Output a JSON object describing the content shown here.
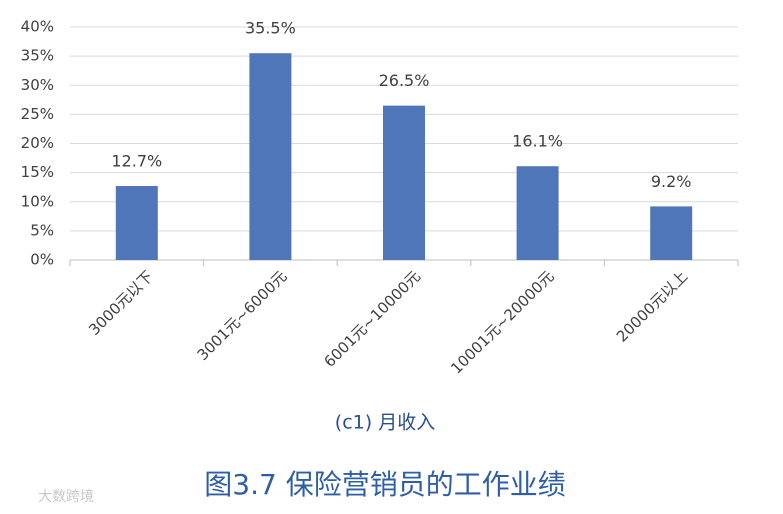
{
  "chart_data": {
    "type": "bar",
    "categories": [
      "3000元以下",
      "3001元~6000元",
      "6001元~10000元",
      "10001元~20000元",
      "20000元以上"
    ],
    "values": [
      12.7,
      35.5,
      26.5,
      16.1,
      9.2
    ],
    "value_labels": [
      "12.7%",
      "35.5%",
      "26.5%",
      "16.1%",
      "9.2%"
    ],
    "color": "#4f76b8",
    "ylim": [
      0,
      40
    ],
    "yticks": [
      {
        "value": 0,
        "label": "0%"
      },
      {
        "value": 5,
        "label": "5%"
      },
      {
        "value": 10,
        "label": "10%"
      },
      {
        "value": 15,
        "label": "15%"
      },
      {
        "value": 20,
        "label": "20%"
      },
      {
        "value": 25,
        "label": "25%"
      },
      {
        "value": 30,
        "label": "30%"
      },
      {
        "value": 35,
        "label": "35%"
      },
      {
        "value": 40,
        "label": "40%"
      }
    ],
    "grid": true,
    "subtitle": "(c1)  月收入",
    "title": "图3.7   保险营销员的工作业绩",
    "watermark": "大数跨境"
  }
}
